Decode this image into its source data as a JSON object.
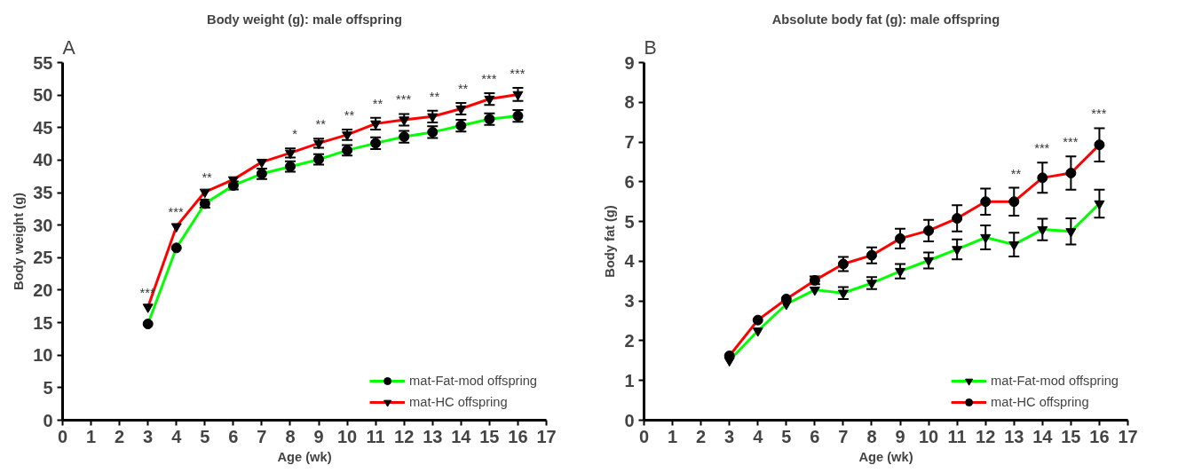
{
  "chart_data": [
    {
      "type": "line",
      "title": "Body weight (g): male offspring",
      "xlabel": "Age (wk)",
      "ylabel": "Body weight (g)",
      "x": [
        3,
        4,
        5,
        6,
        7,
        8,
        9,
        10,
        11,
        12,
        13,
        14,
        15,
        16
      ],
      "series": [
        {
          "name": "mat-Fat-mod offspring",
          "color": "#00ff00",
          "marker": "circle",
          "values": [
            14.8,
            26.5,
            33.3,
            36.1,
            37.9,
            39.0,
            40.1,
            41.5,
            42.6,
            43.6,
            44.3,
            45.3,
            46.3,
            46.8
          ],
          "errors": [
            null,
            null,
            0.6,
            0.6,
            0.8,
            0.8,
            0.8,
            0.8,
            0.9,
            0.9,
            0.9,
            0.9,
            0.9,
            0.9
          ]
        },
        {
          "name": "mat-HC offspring",
          "color": "#ff0000",
          "marker": "triangle",
          "values": [
            17.4,
            29.8,
            35.1,
            37.0,
            39.7,
            41.1,
            42.6,
            43.9,
            45.6,
            46.2,
            46.7,
            47.9,
            49.4,
            50.1
          ],
          "errors": [
            null,
            null,
            null,
            null,
            null,
            0.7,
            0.7,
            0.8,
            0.9,
            0.9,
            0.9,
            0.9,
            0.9,
            1.0
          ]
        }
      ],
      "xlim": [
        0,
        17
      ],
      "xticks": [
        0,
        1,
        2,
        3,
        4,
        5,
        6,
        7,
        8,
        9,
        10,
        11,
        12,
        13,
        14,
        15,
        16,
        17
      ],
      "ylim": [
        0,
        55
      ],
      "yticks": [
        0,
        5,
        10,
        15,
        20,
        25,
        30,
        35,
        40,
        45,
        50,
        55
      ],
      "legend": "bottom right",
      "grid": false,
      "line_style": "solid",
      "annotations": [
        "A",
        {
          "text": "***",
          "x": 3,
          "y": 17.4
        },
        {
          "text": "***",
          "x": 4,
          "y": 29.8
        },
        {
          "text": "**",
          "x": 5,
          "y": 35.1
        },
        {
          "text": "*",
          "x": 8,
          "y": 41.8
        },
        {
          "text": "**",
          "x": 9,
          "y": 43.3
        },
        {
          "text": "**",
          "x": 10,
          "y": 44.7
        },
        {
          "text": "**",
          "x": 11,
          "y": 46.5
        },
        {
          "text": "***",
          "x": 12,
          "y": 47.1
        },
        {
          "text": "**",
          "x": 13,
          "y": 47.6
        },
        {
          "text": "**",
          "x": 14,
          "y": 48.8
        },
        {
          "text": "***",
          "x": 15,
          "y": 50.3
        },
        {
          "text": "***",
          "x": 16,
          "y": 51.1
        }
      ]
    },
    {
      "type": "line",
      "title": "Absolute body fat (g): male offspring",
      "xlabel": "Age (wk)",
      "ylabel": "Body fat (g)",
      "x": [
        3,
        4,
        5,
        6,
        7,
        8,
        9,
        10,
        11,
        12,
        13,
        14,
        15,
        16
      ],
      "series": [
        {
          "name": "mat-Fat-mod offspring",
          "color": "#00ff00",
          "marker": "triangle",
          "values": [
            1.5,
            2.25,
            2.92,
            3.28,
            3.2,
            3.45,
            3.75,
            4.02,
            4.3,
            4.6,
            4.42,
            4.8,
            4.75,
            5.45
          ],
          "errors": [
            null,
            null,
            null,
            null,
            0.15,
            0.15,
            0.18,
            0.2,
            0.25,
            0.3,
            0.3,
            0.27,
            0.33,
            0.35
          ]
        },
        {
          "name": "mat-HC offspring",
          "color": "#ff0000",
          "marker": "circle",
          "values": [
            1.62,
            2.52,
            3.05,
            3.52,
            3.93,
            4.15,
            4.57,
            4.77,
            5.08,
            5.5,
            5.5,
            6.1,
            6.22,
            6.93
          ],
          "errors": [
            null,
            null,
            null,
            0.1,
            0.18,
            0.2,
            0.25,
            0.27,
            0.33,
            0.33,
            0.35,
            0.38,
            0.42,
            0.42
          ]
        }
      ],
      "xlim": [
        0,
        17
      ],
      "xticks": [
        0,
        1,
        2,
        3,
        4,
        5,
        6,
        7,
        8,
        9,
        10,
        11,
        12,
        13,
        14,
        15,
        16,
        17
      ],
      "ylim": [
        0,
        9
      ],
      "yticks": [
        0,
        1,
        2,
        3,
        4,
        5,
        6,
        7,
        8,
        9
      ],
      "legend": "bottom right",
      "grid": false,
      "line_style": "solid",
      "annotations": [
        "B",
        {
          "text": "**",
          "x": 13,
          "y": 5.85
        },
        {
          "text": "***",
          "x": 14,
          "y": 6.48
        },
        {
          "text": "***",
          "x": 15,
          "y": 6.64
        },
        {
          "text": "***",
          "x": 16,
          "y": 7.35
        }
      ]
    }
  ]
}
